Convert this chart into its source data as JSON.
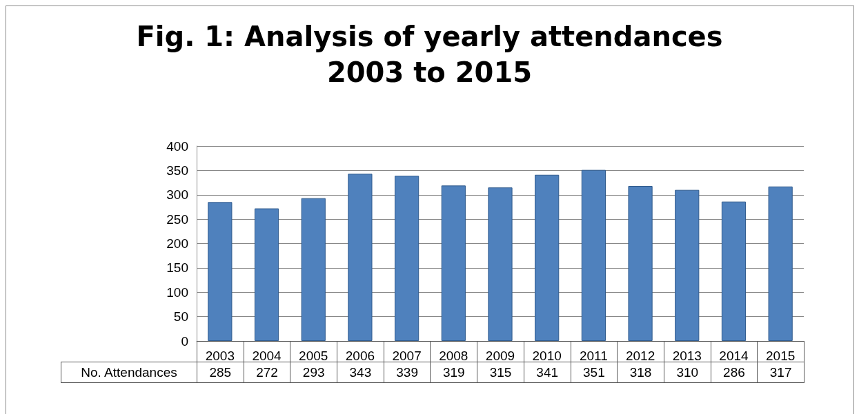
{
  "chart_data": {
    "type": "bar",
    "title": "Fig. 1: Analysis of yearly attendances\n2003 to 2015",
    "categories": [
      "2003",
      "2004",
      "2005",
      "2006",
      "2007",
      "2008",
      "2009",
      "2010",
      "2011",
      "2012",
      "2013",
      "2014",
      "2015"
    ],
    "series": [
      {
        "name": "No. Attendances",
        "color": "#4f81bd",
        "values": [
          285,
          272,
          293,
          343,
          339,
          319,
          315,
          341,
          351,
          318,
          310,
          286,
          317
        ]
      }
    ],
    "ylim": [
      0,
      400
    ],
    "yticks": [
      0,
      50,
      100,
      150,
      200,
      250,
      300,
      350,
      400
    ],
    "grid": "y",
    "legend": false,
    "data_labels": true
  }
}
